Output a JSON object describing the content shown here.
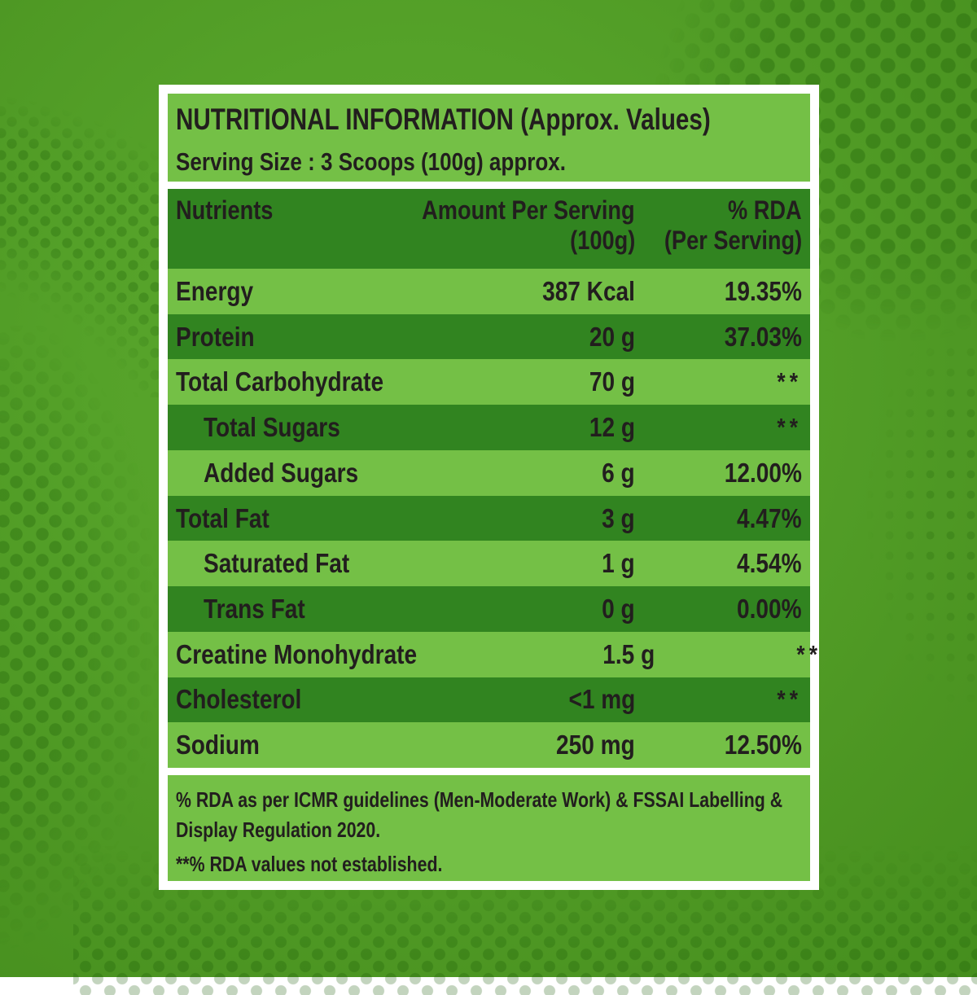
{
  "label": {
    "title": "NUTRITIONAL INFORMATION (Approx. Values)",
    "serving_size": "Serving Size : 3 Scoops (100g) approx.",
    "table": {
      "columns": {
        "nutrients": "Nutrients",
        "amount_line1": "Amount Per Serving",
        "amount_line2": "(100g)",
        "rda_line1": "% RDA",
        "rda_line2": "(Per Serving)"
      },
      "rows": [
        {
          "nutrient": "Energy",
          "amount": "387 Kcal",
          "rda": "19.35%",
          "indent": false
        },
        {
          "nutrient": "Protein",
          "amount": "20 g",
          "rda": "37.03%",
          "indent": false
        },
        {
          "nutrient": "Total Carbohydrate",
          "amount": "70 g",
          "rda": "**",
          "indent": false
        },
        {
          "nutrient": "Total Sugars",
          "amount": "12 g",
          "rda": "**",
          "indent": true
        },
        {
          "nutrient": "Added Sugars",
          "amount": "6 g",
          "rda": "12.00%",
          "indent": true
        },
        {
          "nutrient": "Total Fat",
          "amount": "3 g",
          "rda": "4.47%",
          "indent": false
        },
        {
          "nutrient": "Saturated Fat",
          "amount": "1 g",
          "rda": "4.54%",
          "indent": true
        },
        {
          "nutrient": "Trans Fat",
          "amount": "0 g",
          "rda": "0.00%",
          "indent": true
        },
        {
          "nutrient": "Creatine Monohydrate",
          "amount": "1.5 g",
          "rda": "**",
          "indent": false
        },
        {
          "nutrient": "Cholesterol",
          "amount": "<1 mg",
          "rda": "**",
          "indent": false
        },
        {
          "nutrient": "Sodium",
          "amount": "250 mg",
          "rda": "12.50%",
          "indent": false
        }
      ]
    },
    "footnote": {
      "lines": [
        "% RDA as per ICMR guidelines (Men-Moderate Work) & FSSAI Labelling &",
        "Display Regulation 2020."
      ],
      "note": "**% RDA values not established."
    },
    "colors": {
      "light_green": "#74c046",
      "dark_green": "#318420",
      "background_green": "#55a229",
      "frame_white": "#ffffff",
      "text": "#221e1e"
    }
  }
}
